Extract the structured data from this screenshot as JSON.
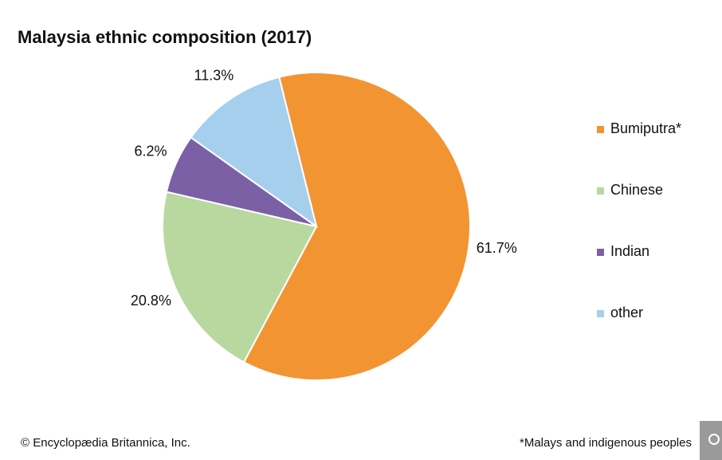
{
  "chart_data": {
    "type": "pie",
    "title": "Malaysia ethnic composition (2017)",
    "categories": [
      "Bumiputra*",
      "Chinese",
      "Indian",
      "other"
    ],
    "values": [
      61.7,
      20.8,
      6.2,
      11.3
    ],
    "value_labels": [
      "61.7%",
      "20.8%",
      "6.2%",
      "11.3%"
    ],
    "colors": [
      "#f39433",
      "#b8d8a0",
      "#7b60a6",
      "#a6cfee"
    ],
    "legend": "right",
    "credit": "© Encyclopædia Britannica, Inc.",
    "footnote": "*Malays and indigenous peoples"
  }
}
